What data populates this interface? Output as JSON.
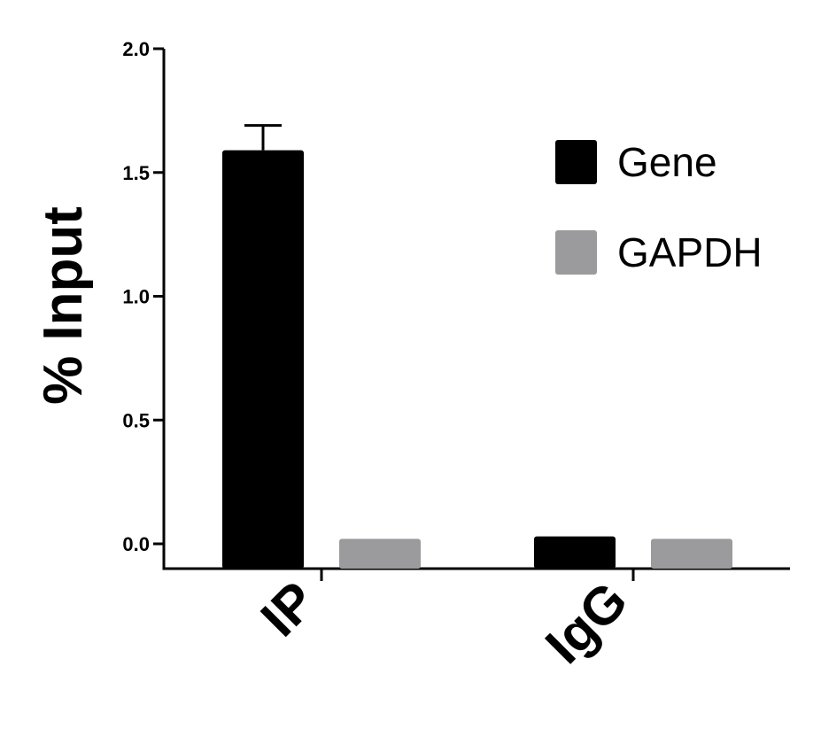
{
  "chart_data": {
    "type": "bar",
    "categories": [
      "IP",
      "IgG"
    ],
    "series": [
      {
        "name": "Gene",
        "color": "#000000",
        "values": [
          1.59,
          0.03
        ],
        "error": [
          0.1,
          0
        ]
      },
      {
        "name": "GAPDH",
        "color": "#9b9b9d",
        "values": [
          0.02,
          0.02
        ],
        "error": [
          0,
          0
        ]
      }
    ],
    "ylabel": "% Input",
    "xlabel": "",
    "title": "",
    "ylim": [
      0,
      2.0
    ],
    "yticks": [
      "0.0",
      "0.5",
      "1.0",
      "1.5",
      "2.0"
    ],
    "grid": false,
    "legend": "top-right"
  }
}
